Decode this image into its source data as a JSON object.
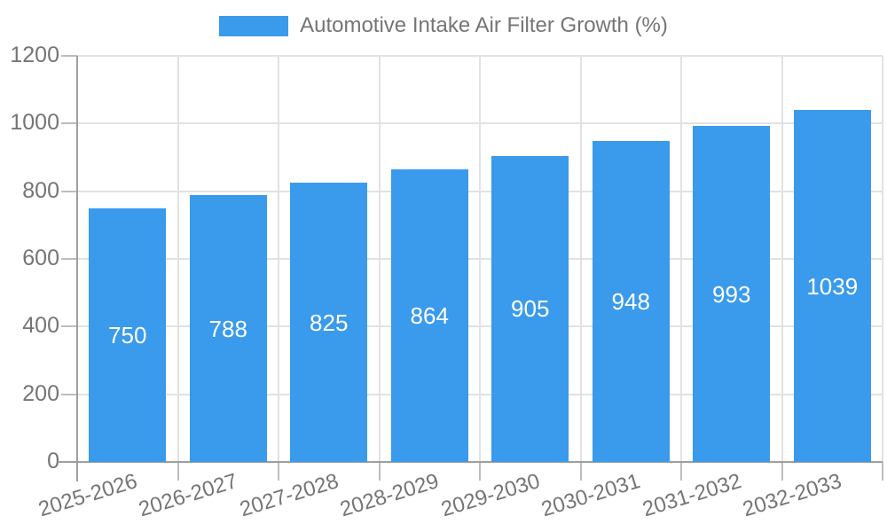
{
  "chart_data": {
    "type": "bar",
    "legend_label": "Automotive Intake Air Filter Growth (%)",
    "categories": [
      "2025-2026",
      "2026-2027",
      "2027-2028",
      "2028-2029",
      "2029-2030",
      "2030-2031",
      "2031-2032",
      "2032-2033"
    ],
    "values": [
      750,
      788,
      825,
      864,
      905,
      948,
      993,
      1039
    ],
    "y_ticks": [
      0,
      200,
      400,
      600,
      800,
      1000,
      1200
    ],
    "ylim": [
      0,
      1200
    ],
    "grid": true,
    "legend_position": "top-center",
    "colors": {
      "bar": "#3a9aec",
      "axis_line": "#9e9e9e",
      "gridline": "#e2e2e2",
      "tick": "#bdbdbd",
      "tick_label": "#757575",
      "value_label": "#ffffff",
      "background": "#ffffff"
    }
  }
}
